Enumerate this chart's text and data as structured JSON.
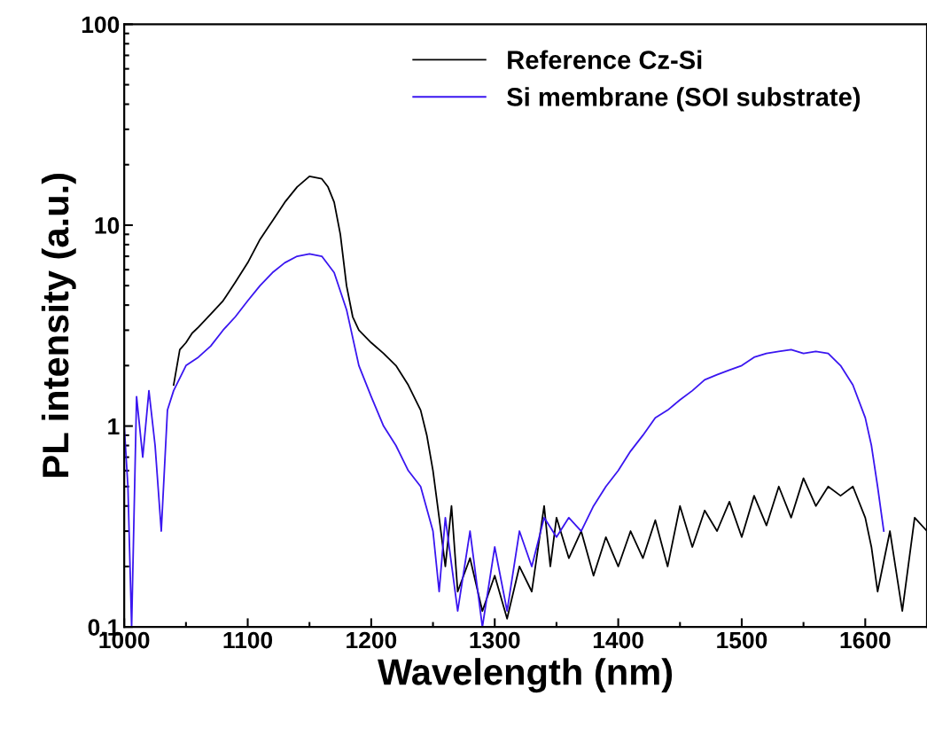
{
  "chart_data": {
    "type": "line",
    "xlabel": "Wavelength (nm)",
    "ylabel": "PL intensity (a.u.)",
    "xlim": [
      1000,
      1650
    ],
    "xticks": [
      1000,
      1100,
      1200,
      1300,
      1400,
      1500,
      1600
    ],
    "ylim": [
      0.1,
      100
    ],
    "yticks": [
      0.1,
      1,
      10,
      100
    ],
    "log": "y",
    "grid": false,
    "legend": "top right",
    "series": [
      {
        "name": "Reference Cz-Si",
        "color": "#000000",
        "x": [
          1040,
          1045,
          1050,
          1055,
          1060,
          1070,
          1080,
          1090,
          1100,
          1110,
          1120,
          1130,
          1140,
          1150,
          1160,
          1165,
          1170,
          1175,
          1180,
          1185,
          1190,
          1200,
          1210,
          1220,
          1230,
          1240,
          1245,
          1250,
          1255,
          1260,
          1265,
          1270,
          1280,
          1290,
          1300,
          1310,
          1320,
          1330,
          1340,
          1345,
          1350,
          1360,
          1370,
          1380,
          1390,
          1400,
          1410,
          1420,
          1430,
          1440,
          1450,
          1460,
          1470,
          1480,
          1490,
          1500,
          1510,
          1520,
          1530,
          1540,
          1550,
          1560,
          1570,
          1580,
          1590,
          1600,
          1605,
          1610,
          1620,
          1630,
          1640,
          1650
        ],
        "values": [
          1.6,
          2.4,
          2.6,
          2.9,
          3.1,
          3.6,
          4.2,
          5.2,
          6.5,
          8.5,
          10.5,
          13,
          15.5,
          17.5,
          17,
          15.5,
          13,
          9,
          5,
          3.5,
          3,
          2.6,
          2.3,
          2,
          1.6,
          1.2,
          0.9,
          0.6,
          0.35,
          0.2,
          0.4,
          0.15,
          0.22,
          0.12,
          0.18,
          0.11,
          0.2,
          0.15,
          0.4,
          0.2,
          0.35,
          0.22,
          0.3,
          0.18,
          0.28,
          0.2,
          0.3,
          0.22,
          0.34,
          0.2,
          0.4,
          0.25,
          0.38,
          0.3,
          0.42,
          0.28,
          0.45,
          0.32,
          0.5,
          0.35,
          0.55,
          0.4,
          0.5,
          0.45,
          0.5,
          0.35,
          0.25,
          0.15,
          0.3,
          0.12,
          0.35,
          0.3
        ]
      },
      {
        "name": "Si membrane (SOI substrate)",
        "color": "#3a16f0",
        "x": [
          1000,
          1003,
          1006,
          1010,
          1015,
          1020,
          1025,
          1030,
          1035,
          1040,
          1050,
          1060,
          1070,
          1080,
          1090,
          1100,
          1110,
          1120,
          1130,
          1140,
          1150,
          1160,
          1170,
          1180,
          1190,
          1200,
          1210,
          1220,
          1230,
          1240,
          1250,
          1255,
          1260,
          1270,
          1280,
          1290,
          1300,
          1310,
          1320,
          1330,
          1340,
          1350,
          1360,
          1370,
          1380,
          1390,
          1400,
          1410,
          1420,
          1430,
          1440,
          1450,
          1460,
          1470,
          1480,
          1490,
          1500,
          1510,
          1520,
          1530,
          1540,
          1550,
          1560,
          1570,
          1580,
          1590,
          1600,
          1605,
          1610,
          1615
        ],
        "values": [
          1.0,
          0.5,
          0.1,
          1.4,
          0.7,
          1.5,
          0.8,
          0.3,
          1.2,
          1.5,
          2.0,
          2.2,
          2.5,
          3.0,
          3.5,
          4.2,
          5.0,
          5.8,
          6.5,
          7.0,
          7.2,
          7.0,
          5.8,
          3.8,
          2.0,
          1.4,
          1.0,
          0.8,
          0.6,
          0.5,
          0.3,
          0.15,
          0.35,
          0.12,
          0.3,
          0.1,
          0.25,
          0.12,
          0.3,
          0.2,
          0.35,
          0.28,
          0.35,
          0.3,
          0.4,
          0.5,
          0.6,
          0.75,
          0.9,
          1.1,
          1.2,
          1.35,
          1.5,
          1.7,
          1.8,
          1.9,
          2.0,
          2.2,
          2.3,
          2.35,
          2.4,
          2.3,
          2.35,
          2.3,
          2.0,
          1.6,
          1.1,
          0.8,
          0.5,
          0.3
        ]
      }
    ]
  }
}
